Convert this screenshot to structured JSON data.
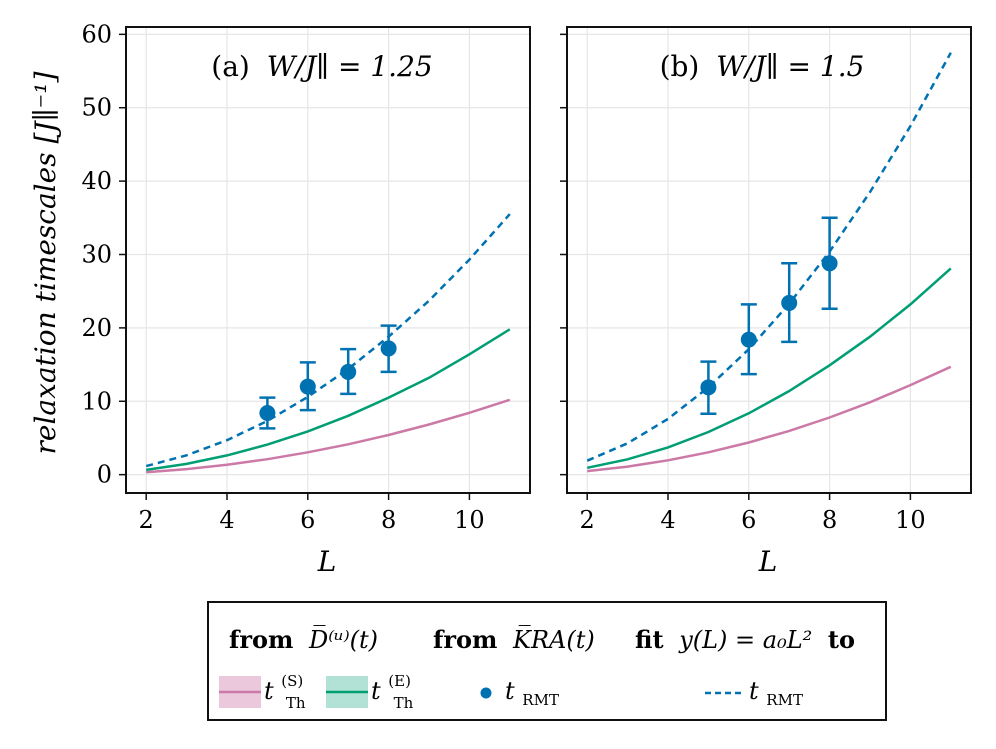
{
  "chart_data": [
    {
      "type": "line",
      "panel_label": "(a)",
      "title": "W/J∥ = 1.25",
      "xlabel": "L",
      "ylabel": "relaxation timescales [J∥⁻¹]",
      "xlim": [
        1.5,
        11.5
      ],
      "ylim": [
        -2.5,
        61
      ],
      "xticks": [
        2,
        4,
        6,
        8,
        10
      ],
      "yticks": [
        0,
        10,
        20,
        30,
        40,
        50,
        60
      ],
      "grid": true,
      "series": [
        {
          "name": "t_Th^(S)",
          "kind": "line",
          "color": "#cc79a7",
          "x": [
            2,
            3,
            4,
            5,
            6,
            7,
            8,
            9,
            10,
            11
          ],
          "y": [
            0.34,
            0.76,
            1.35,
            2.11,
            3.04,
            4.13,
            5.4,
            6.83,
            8.43,
            10.2
          ]
        },
        {
          "name": "t_Th^(E)",
          "kind": "line",
          "color": "#009e73",
          "x": [
            2,
            3,
            4,
            5,
            6,
            7,
            8,
            9,
            10,
            11
          ],
          "y": [
            0.65,
            1.47,
            2.62,
            4.09,
            5.89,
            8.02,
            10.5,
            13.2,
            16.4,
            19.8
          ]
        },
        {
          "name": "t_RMT",
          "kind": "errorbar",
          "color": "#0072b2",
          "x": [
            5,
            6,
            7,
            8
          ],
          "y": [
            8.4,
            12.0,
            14.0,
            17.2
          ],
          "ylow": [
            6.3,
            8.8,
            11.0,
            14.0
          ],
          "yhigh": [
            10.5,
            15.3,
            17.1,
            20.3
          ]
        },
        {
          "name": "fit t_RMT",
          "kind": "dashed",
          "color": "#0072b2",
          "x": [
            2,
            3,
            4,
            5,
            6,
            7,
            8,
            9,
            10,
            11
          ],
          "y": [
            1.17,
            2.64,
            4.69,
            7.33,
            10.6,
            14.4,
            18.8,
            23.7,
            29.3,
            35.5
          ]
        }
      ]
    },
    {
      "type": "line",
      "panel_label": "(b)",
      "title": "W/J∥ = 1.5",
      "xlabel": "L",
      "xlim": [
        1.5,
        11.5
      ],
      "ylim": [
        -2.5,
        61
      ],
      "xticks": [
        2,
        4,
        6,
        8,
        10
      ],
      "yticks": [
        0,
        10,
        20,
        30,
        40,
        50,
        60
      ],
      "grid": true,
      "series": [
        {
          "name": "t_Th^(S)",
          "kind": "line",
          "color": "#cc79a7",
          "x": [
            2,
            3,
            4,
            5,
            6,
            7,
            8,
            9,
            10,
            11
          ],
          "y": [
            0.49,
            1.1,
            1.95,
            3.04,
            4.38,
            5.96,
            7.79,
            9.86,
            12.2,
            14.7
          ]
        },
        {
          "name": "t_Th^(E)",
          "kind": "line",
          "color": "#009e73",
          "x": [
            2,
            3,
            4,
            5,
            6,
            7,
            8,
            9,
            10,
            11
          ],
          "y": [
            0.93,
            2.09,
            3.72,
            5.81,
            8.36,
            11.4,
            14.9,
            18.8,
            23.2,
            28.1
          ]
        },
        {
          "name": "t_RMT",
          "kind": "errorbar",
          "color": "#0072b2",
          "x": [
            5,
            6,
            7,
            8
          ],
          "y": [
            11.9,
            18.4,
            23.4,
            28.8
          ],
          "ylow": [
            8.3,
            13.7,
            18.1,
            22.6
          ],
          "yhigh": [
            15.4,
            23.2,
            28.8,
            35.0
          ]
        },
        {
          "name": "fit t_RMT",
          "kind": "dashed",
          "color": "#0072b2",
          "x": [
            2,
            3,
            4,
            5,
            6,
            7,
            8,
            9,
            10,
            11
          ],
          "y": [
            1.9,
            4.27,
            7.6,
            11.9,
            17.1,
            23.3,
            30.4,
            38.5,
            47.5,
            57.5
          ]
        }
      ]
    }
  ],
  "legend": {
    "group1_head": "from",
    "group1_expr": "D̅⁽ᵘ⁾(t)",
    "group2_head": "from",
    "group2_expr": "K̅RA(t)",
    "group3_head": "fit",
    "group3_expr": "y(L) = a₀L²",
    "group3_tail": "to",
    "items": [
      {
        "label": "t_Th^(S)",
        "main": "t",
        "sub": "Th",
        "sup": "(S)",
        "color": "#cc79a7",
        "fill": "#ebc8dc"
      },
      {
        "label": "t_Th^(E)",
        "main": "t",
        "sub": "Th",
        "sup": "(E)",
        "color": "#009e73",
        "fill": "#b2e2d5"
      },
      {
        "label": "t_RMT",
        "main": "t",
        "sub": "RMT",
        "sup": "",
        "color": "#0072b2"
      },
      {
        "label": "t_RMT",
        "main": "t",
        "sub": "RMT",
        "sup": "",
        "color": "#0072b2"
      }
    ]
  }
}
